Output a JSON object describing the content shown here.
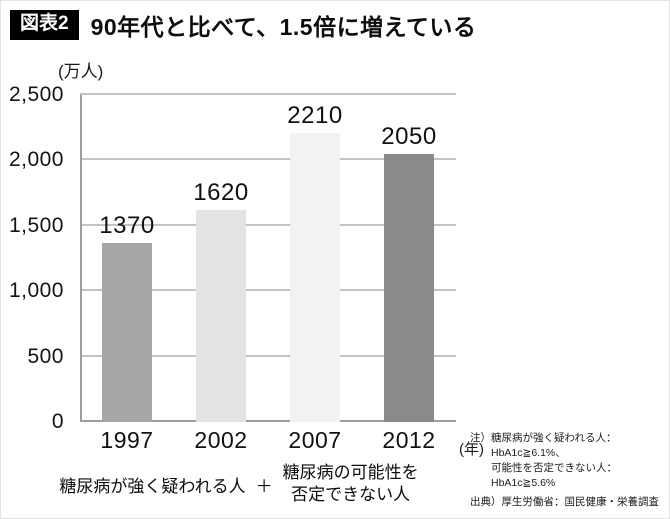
{
  "header": {
    "badge": "図表2",
    "title": "90年代と比べて、1.5倍に増えている"
  },
  "chart_data": {
    "type": "bar",
    "title": "90年代と比べて、1.5倍に増えている",
    "categories": [
      "1997",
      "2002",
      "2007",
      "2012"
    ],
    "values": [
      1370,
      1620,
      2210,
      2050
    ],
    "value_labels": [
      "1370",
      "1620",
      "2210",
      "2050"
    ],
    "ylabel": "(万人)",
    "xlabel": "(年)",
    "ylim": [
      0,
      2500
    ],
    "yticks": [
      0,
      500,
      1000,
      1500,
      2000,
      2500
    ],
    "ytick_labels": [
      "0",
      "500",
      "1,000",
      "1,500",
      "2,000",
      "2,500"
    ],
    "bar_colors": [
      "#a7a7a7",
      "#e3e3e2",
      "#f2f2f0",
      "#8a8a8a"
    ],
    "grid": true,
    "legend": "none"
  },
  "caption": {
    "left": "糖尿病が強く疑われる人",
    "plus": "＋",
    "right_line1": "糖尿病の可能性を",
    "right_line2": "否定できない人"
  },
  "notes": {
    "note_label": "注）",
    "note_line1": "糖尿病が強く疑われる人：",
    "note_line2": "HbA1c≧6.1%、",
    "note_line3": "可能性を否定できない人：",
    "note_line4": "HbA1c≧5.6%",
    "source_label": "出典）",
    "source_text": "厚生労働省：国民健康・栄養調査"
  }
}
